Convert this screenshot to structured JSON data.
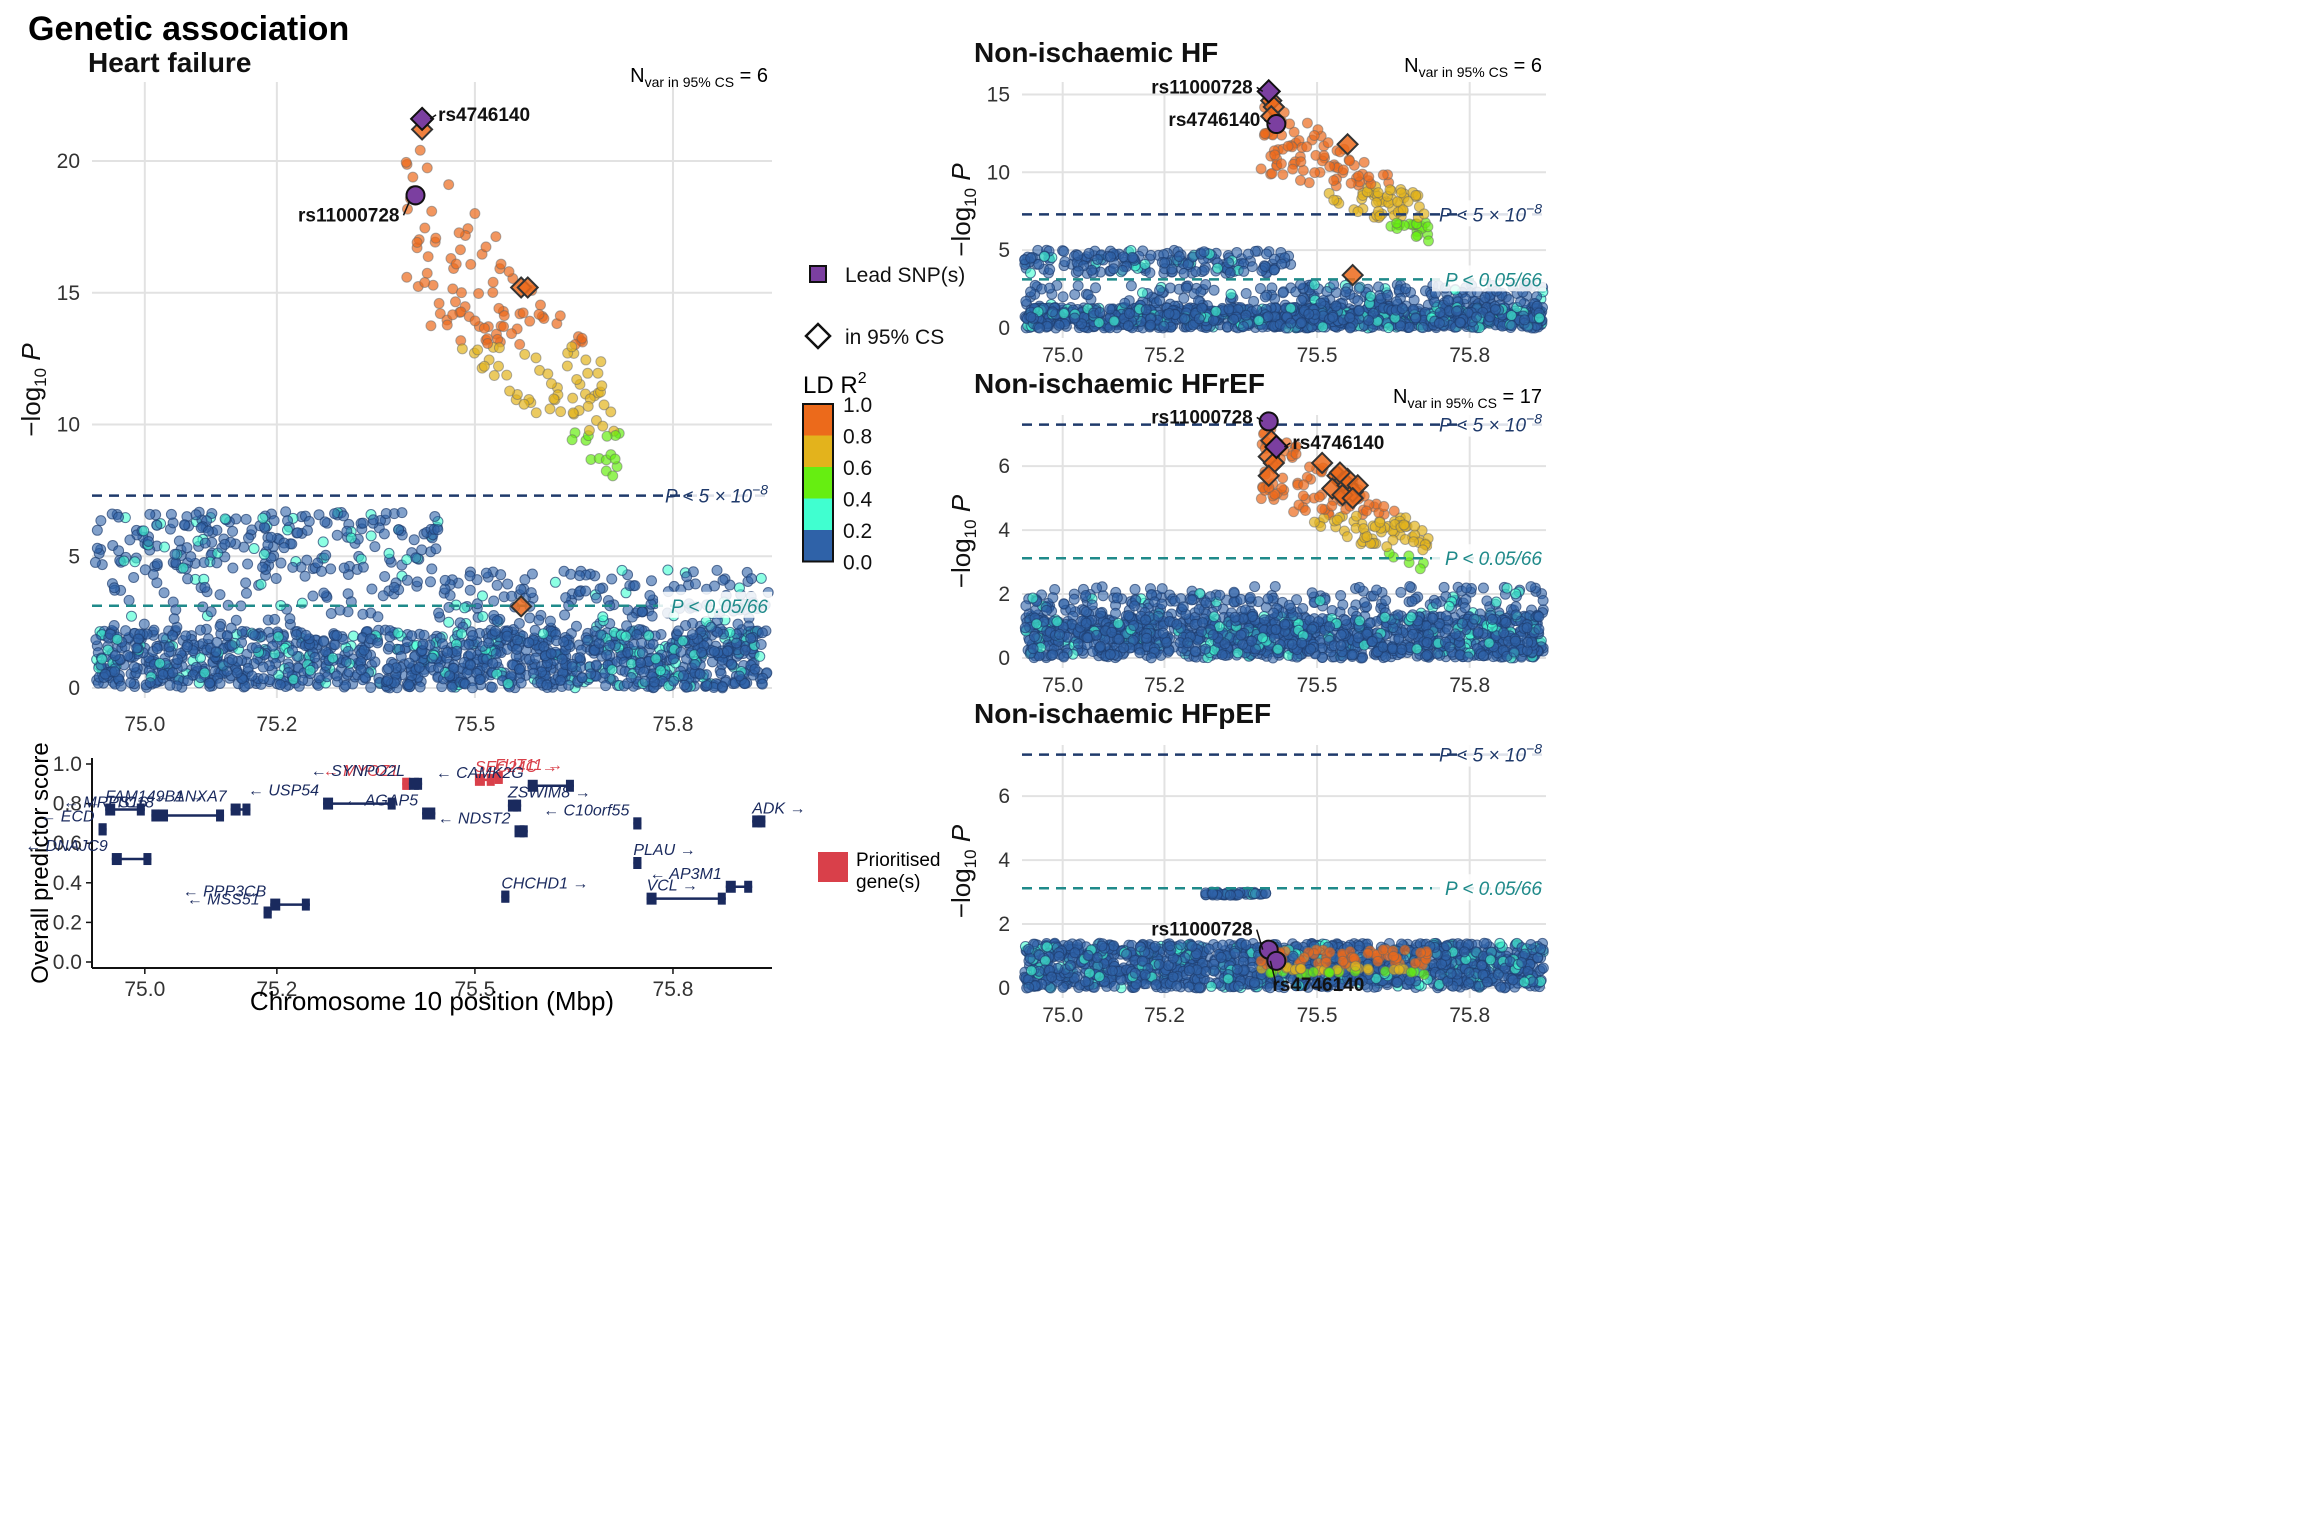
{
  "page_title": "Genetic association",
  "threshold_labels": {
    "genome_wide": "P < 5 × 10",
    "genome_wide_exp": "−8",
    "suggestive": "P < 0.05/66"
  },
  "y_axis_label": "−log10 P",
  "colors": {
    "lead": "#7b3fa0",
    "ld_0_0.2": "#2f62a8",
    "ld_0.2_0.4": "#40ffd0",
    "ld_0.4_0.6": "#66ee11",
    "ld_0.6_0.8": "#e3b31c",
    "ld_0.8_1.0": "#ec6a1b",
    "gw_line": "#1f3a6b",
    "sugg_line": "#1f8a8a",
    "gene": "#1a2a5e",
    "prioritised": "#d9404a"
  },
  "legend": {
    "lead_label": "Lead SNP(s)",
    "cs_label": "in 95% CS",
    "ld_title": "LD R",
    "ld_title_sup": "2",
    "ld_ticks": [
      "1.0",
      "0.8",
      "0.6",
      "0.4",
      "0.2",
      "0.0"
    ],
    "prioritised_label_1": "Prioritised",
    "prioritised_label_2": "gene(s)"
  },
  "chart_data": [
    {
      "type": "scatter",
      "title": "Heart failure",
      "nvar_label": "N",
      "nvar_sub": "var in 95% CS",
      "nvar_value": "= 6",
      "xlim": [
        74.92,
        75.95
      ],
      "ylim": [
        0,
        23
      ],
      "y_ticks": [
        0,
        5,
        10,
        15,
        20
      ],
      "x_ticks": [
        "75.0",
        "75.2",
        "75.5",
        "75.8"
      ],
      "genome_wide_threshold": 7.3,
      "suggestive_threshold": 3.12,
      "lead_snps": [
        {
          "name": "rs4746140",
          "x": 75.42,
          "y": 21.6,
          "shape": "diamond"
        },
        {
          "name": "rs11000728",
          "x": 75.41,
          "y": 18.7,
          "shape": "circle"
        }
      ],
      "credible_set": [
        {
          "x": 75.42,
          "y": 21.2
        },
        {
          "x": 75.57,
          "y": 15.2
        },
        {
          "x": 75.58,
          "y": 15.2
        },
        {
          "x": 75.57,
          "y": 3.1
        }
      ]
    },
    {
      "type": "scatter",
      "title": "Non-ischaemic HF",
      "nvar_label": "N",
      "nvar_sub": "var in 95% CS",
      "nvar_value": "= 6",
      "xlim": [
        74.92,
        75.95
      ],
      "ylim": [
        0,
        15.8
      ],
      "y_ticks": [
        0,
        5,
        10,
        15
      ],
      "x_ticks": [
        "75.0",
        "75.2",
        "75.5",
        "75.8"
      ],
      "genome_wide_threshold": 7.3,
      "suggestive_threshold": 3.12,
      "lead_snps": [
        {
          "name": "rs11000728",
          "x": 75.405,
          "y": 15.2,
          "shape": "diamond"
        },
        {
          "name": "rs4746140",
          "x": 75.42,
          "y": 13.1,
          "shape": "circle"
        }
      ],
      "credible_set": [
        {
          "x": 75.41,
          "y": 14.6
        },
        {
          "x": 75.415,
          "y": 14.2
        },
        {
          "x": 75.41,
          "y": 13.6
        },
        {
          "x": 75.56,
          "y": 11.8
        },
        {
          "x": 75.57,
          "y": 3.4
        }
      ]
    },
    {
      "type": "scatter",
      "title": "Non-ischaemic HFrEF",
      "nvar_label": "N",
      "nvar_sub": "var in 95% CS",
      "nvar_value": "= 17",
      "xlim": [
        74.92,
        75.95
      ],
      "ylim": [
        0,
        7.6
      ],
      "y_ticks": [
        0,
        2,
        4,
        6
      ],
      "x_ticks": [
        "75.0",
        "75.2",
        "75.5",
        "75.8"
      ],
      "genome_wide_threshold": 7.3,
      "suggestive_threshold": 3.12,
      "lead_snps": [
        {
          "name": "rs11000728",
          "x": 75.405,
          "y": 7.4,
          "shape": "circle"
        },
        {
          "name": "rs4746140",
          "x": 75.42,
          "y": 6.6,
          "shape": "diamond"
        }
      ],
      "credible_set": [
        {
          "x": 75.41,
          "y": 6.8
        },
        {
          "x": 75.405,
          "y": 6.3
        },
        {
          "x": 75.415,
          "y": 6.1
        },
        {
          "x": 75.405,
          "y": 5.7
        },
        {
          "x": 75.51,
          "y": 6.1
        },
        {
          "x": 75.54,
          "y": 5.7
        },
        {
          "x": 75.55,
          "y": 5.5
        },
        {
          "x": 75.53,
          "y": 5.3
        },
        {
          "x": 75.56,
          "y": 5.4
        },
        {
          "x": 75.57,
          "y": 5.2
        },
        {
          "x": 75.55,
          "y": 5.1
        },
        {
          "x": 75.56,
          "y": 5.6
        },
        {
          "x": 75.58,
          "y": 5.4
        },
        {
          "x": 75.57,
          "y": 5.0
        },
        {
          "x": 75.545,
          "y": 5.8
        }
      ]
    },
    {
      "type": "scatter",
      "title": "Non-ischaemic HFpEF",
      "nvar_label": "",
      "nvar_sub": "",
      "nvar_value": "",
      "xlim": [
        74.92,
        75.95
      ],
      "ylim": [
        0,
        7.6
      ],
      "y_ticks": [
        0,
        2,
        4,
        6
      ],
      "x_ticks": [
        "75.0",
        "75.2",
        "75.5",
        "75.8"
      ],
      "genome_wide_threshold": 7.3,
      "suggestive_threshold": 3.12,
      "lead_snps": [
        {
          "name": "rs11000728",
          "x": 75.405,
          "y": 1.2,
          "shape": "circle"
        },
        {
          "name": "rs4746140",
          "x": 75.42,
          "y": 0.85,
          "shape": "circle"
        }
      ],
      "credible_set": []
    }
  ],
  "gene_track": {
    "y_label": "Overall predictor score",
    "x_label": "Chromosome 10 position (Mbp)",
    "xlim": [
      74.92,
      75.95
    ],
    "ylim": [
      0,
      1.0
    ],
    "y_ticks": [
      "0.0",
      "0.2",
      "0.4",
      "0.6",
      "0.8",
      "1.0"
    ],
    "x_ticks": [
      "75.0",
      "75.2",
      "75.5",
      "75.8"
    ],
    "genes": [
      {
        "name": "FAM149B1 →",
        "start": 74.94,
        "end": 75.0,
        "score": 0.77,
        "prioritised": false
      },
      {
        "name": "← ECD",
        "start": 74.93,
        "end": 74.94,
        "score": 0.67,
        "prioritised": false
      },
      {
        "name": "← MRPS16",
        "start": 75.01,
        "end": 75.02,
        "score": 0.74,
        "prioritised": false
      },
      {
        "name": "← DNAJC9",
        "start": 74.95,
        "end": 75.01,
        "score": 0.52,
        "prioritised": false
      },
      {
        "name": "← ANXA7",
        "start": 75.13,
        "end": 75.16,
        "score": 0.77,
        "prioritised": false
      },
      {
        "name": "← TTC18",
        "start": 75.02,
        "end": 75.12,
        "score": 0.74,
        "prioritised": false
      },
      {
        "name": "← MSS51",
        "start": 75.18,
        "end": 75.19,
        "score": 0.25,
        "prioritised": false
      },
      {
        "name": "← PPP3CB",
        "start": 75.19,
        "end": 75.25,
        "score": 0.29,
        "prioritised": false
      },
      {
        "name": "← MYOZ1",
        "start": 75.39,
        "end": 75.4,
        "score": 0.9,
        "prioritised": true
      },
      {
        "name": "← SYNPO2L",
        "start": 75.4,
        "end": 75.42,
        "score": 0.9,
        "prioritised": false
      },
      {
        "name": "← USP54",
        "start": 75.27,
        "end": 75.38,
        "score": 0.8,
        "prioritised": false
      },
      {
        "name": "← AGAP5",
        "start": 75.42,
        "end": 75.44,
        "score": 0.75,
        "prioritised": false
      },
      {
        "name": "SEC24C →",
        "start": 75.5,
        "end": 75.53,
        "score": 0.92,
        "prioritised": true
      },
      {
        "name": "FUT11 →",
        "start": 75.53,
        "end": 75.54,
        "score": 0.93,
        "prioritised": true
      },
      {
        "name": "ZSWIM8 →",
        "start": 75.55,
        "end": 75.57,
        "score": 0.79,
        "prioritised": false
      },
      {
        "name": "← NDST2",
        "start": 75.56,
        "end": 75.58,
        "score": 0.66,
        "prioritised": false
      },
      {
        "name": "← CAMK2G",
        "start": 75.58,
        "end": 75.65,
        "score": 0.89,
        "prioritised": false
      },
      {
        "name": "← C10orf55",
        "start": 75.74,
        "end": 75.75,
        "score": 0.7,
        "prioritised": false
      },
      {
        "name": "PLAU →",
        "start": 75.74,
        "end": 75.75,
        "score": 0.5,
        "prioritised": false
      },
      {
        "name": "CHCHD1 →",
        "start": 75.54,
        "end": 75.55,
        "score": 0.33,
        "prioritised": false
      },
      {
        "name": "VCL →",
        "start": 75.76,
        "end": 75.88,
        "score": 0.32,
        "prioritised": false
      },
      {
        "name": "← AP3M1",
        "start": 75.88,
        "end": 75.92,
        "score": 0.38,
        "prioritised": false
      },
      {
        "name": "ADK →",
        "start": 75.92,
        "end": 75.94,
        "score": 0.71,
        "prioritised": false
      }
    ]
  }
}
